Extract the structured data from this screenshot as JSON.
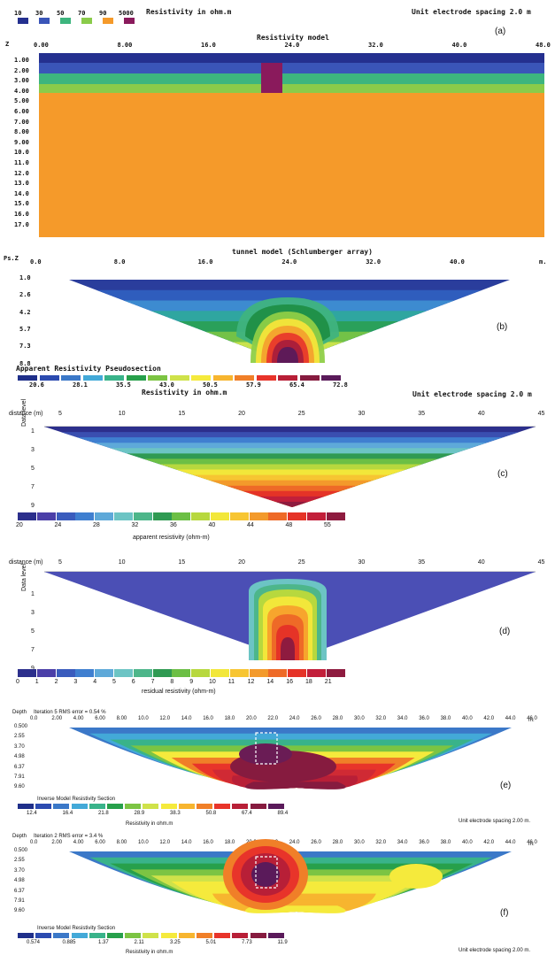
{
  "panel_a": {
    "legend_title": "Resistivity in ohm.m",
    "legend_values": [
      "10",
      "30",
      "50",
      "70",
      "90",
      "5000"
    ],
    "legend_colors": [
      "#24308f",
      "#3a55b8",
      "#3db57e",
      "#8acb4a",
      "#f59a2a",
      "#8a1a5c"
    ],
    "spacing_label": "Unit electrode spacing 2.0 m",
    "tag": "(a)",
    "title": "Resistivity model",
    "z_label": "Z",
    "x_ticks": [
      "0.00",
      "8.00",
      "16.0",
      "24.0",
      "32.0",
      "40.0",
      "48.0"
    ],
    "depth_ticks": [
      "1.00",
      "2.00",
      "3.00",
      "4.00",
      "5.00",
      "6.00",
      "7.00",
      "8.00",
      "9.00",
      "10.0",
      "11.0",
      "12.0",
      "13.0",
      "14.0",
      "15.0",
      "16.0",
      "17.0"
    ]
  },
  "panel_b": {
    "title": "tunnel model (Schlumberger array)",
    "ps_label": "Ps.Z",
    "x_ticks": [
      "0.0",
      "8.0",
      "16.0",
      "24.0",
      "32.0",
      "40.0"
    ],
    "unit": "m.",
    "depth_ticks": [
      "1.0",
      "2.6",
      "4.2",
      "5.7",
      "7.3",
      "8.8"
    ],
    "tag": "(b)",
    "legend_title": "Apparent Resistivity Pseudosection",
    "legend_sub": "Resistivity in ohm.m",
    "legend_values": [
      "20.6",
      "28.1",
      "35.5",
      "43.0",
      "50.5",
      "57.9",
      "65.4",
      "72.8"
    ],
    "legend_colors": [
      "#1f2f8a",
      "#2c4bb0",
      "#3b78c8",
      "#43a9d8",
      "#39b38a",
      "#27a04b",
      "#7cc443",
      "#cfe24a",
      "#f5ea3c",
      "#f7b52f",
      "#f07f28",
      "#e8342a",
      "#b81f37",
      "#861b3f",
      "#5a1a5a"
    ],
    "spacing_label": "Unit electrode spacing 2.0 m"
  },
  "panel_c": {
    "distance_label": "distance (m)",
    "x_ticks": [
      "5",
      "10",
      "15",
      "20",
      "25",
      "30",
      "35",
      "40",
      "45"
    ],
    "level_label": "Data level",
    "level_ticks": [
      "1",
      "3",
      "5",
      "7",
      "9"
    ],
    "tag": "(c)",
    "legend_ticks": [
      "20",
      "24",
      "28",
      "32",
      "36",
      "40",
      "44",
      "48",
      "55"
    ],
    "legend_title": "apparent resistivity (ohm-m)",
    "legend_colors": [
      "#2c2f8c",
      "#4b3fa8",
      "#3a5cbd",
      "#3f7fd0",
      "#5ea9d9",
      "#6cc4c4",
      "#4db68a",
      "#2f9a52",
      "#6cbf45",
      "#b7d83e",
      "#f2e73a",
      "#f7c532",
      "#f39a2b",
      "#ee6a27",
      "#e53327",
      "#c21f3a",
      "#8e1b3f"
    ]
  },
  "panel_d": {
    "distance_label": "distance (m)",
    "x_ticks": [
      "5",
      "10",
      "15",
      "20",
      "25",
      "30",
      "35",
      "40",
      "45"
    ],
    "level_label": "Data level",
    "level_ticks": [
      "1",
      "3",
      "5",
      "7",
      "9"
    ],
    "tag": "(d)",
    "legend_ticks": [
      "0",
      "1",
      "2",
      "3",
      "4",
      "5",
      "6",
      "7",
      "8",
      "9",
      "10",
      "11",
      "12",
      "14",
      "16",
      "18",
      "21"
    ],
    "legend_title": "residual resistivity (ohm-m)",
    "legend_colors": [
      "#2c2f8c",
      "#4b3fa8",
      "#3a5cbd",
      "#3f7fd0",
      "#5ea9d9",
      "#6cc4c4",
      "#4db68a",
      "#2f9a52",
      "#6cbf45",
      "#b7d83e",
      "#f2e73a",
      "#f7c532",
      "#f39a2b",
      "#ee6a27",
      "#e53327",
      "#c21f3a",
      "#8e1b3f"
    ]
  },
  "panel_e": {
    "depth_label": "Depth",
    "iteration": "Iteration 5 RMS error = 0.54 %",
    "x_ticks": [
      "0.0",
      "2.00",
      "4.00",
      "6.00",
      "8.00",
      "10.0",
      "12.0",
      "14.0",
      "16.0",
      "18.0",
      "20.0",
      "22.0",
      "24.0",
      "26.0",
      "28.0",
      "30.0",
      "32.0",
      "34.0",
      "36.0",
      "38.0",
      "40.0",
      "42.0",
      "44.0",
      "46.0"
    ],
    "unit": "m.",
    "depth_ticks": [
      "0.500",
      "2.55",
      "3.70",
      "4.98",
      "6.37",
      "7.91",
      "9.60"
    ],
    "tag": "(e)",
    "legend_title": "Inverse Model Resistivity Section",
    "legend_values": [
      "12.4",
      "16.4",
      "21.8",
      "28.9",
      "38.3",
      "50.8",
      "67.4",
      "89.4"
    ],
    "legend_sub": "Resistivity in ohm.m",
    "spacing_label": "Unit electrode spacing 2.00 m.",
    "legend_colors": [
      "#1f2f8a",
      "#2c4bb0",
      "#3b78c8",
      "#43a9d8",
      "#39b38a",
      "#27a04b",
      "#7cc443",
      "#cfe24a",
      "#f5ea3c",
      "#f7b52f",
      "#f07f28",
      "#e8342a",
      "#b81f37",
      "#861b3f",
      "#5a1a5a"
    ]
  },
  "panel_f": {
    "depth_label": "Depth",
    "iteration": "Iteration 2 RMS error = 3.4 %",
    "x_ticks": [
      "0.0",
      "2.00",
      "4.00",
      "6.00",
      "8.00",
      "10.0",
      "12.0",
      "14.0",
      "16.0",
      "18.0",
      "20.0",
      "22.0",
      "24.0",
      "26.0",
      "28.0",
      "30.0",
      "32.0",
      "34.0",
      "36.0",
      "38.0",
      "40.0",
      "42.0",
      "44.0",
      "46.0"
    ],
    "unit": "m.",
    "depth_ticks": [
      "0.500",
      "2.55",
      "3.70",
      "4.98",
      "6.37",
      "7.91",
      "9.60"
    ],
    "tag": "(f)",
    "legend_title": "Inverse Model Resistivity Section",
    "legend_values": [
      "0.574",
      "0.885",
      "1.37",
      "2.11",
      "3.25",
      "5.01",
      "7.73",
      "11.9"
    ],
    "legend_sub": "Resistivity in ohm.m",
    "spacing_label": "Unit electrode spacing 2.00 m.",
    "legend_colors": [
      "#1f2f8a",
      "#2c4bb0",
      "#3b78c8",
      "#43a9d8",
      "#39b38a",
      "#27a04b",
      "#7cc443",
      "#cfe24a",
      "#f5ea3c",
      "#f7b52f",
      "#f07f28",
      "#e8342a",
      "#b81f37",
      "#861b3f",
      "#5a1a5a"
    ]
  }
}
